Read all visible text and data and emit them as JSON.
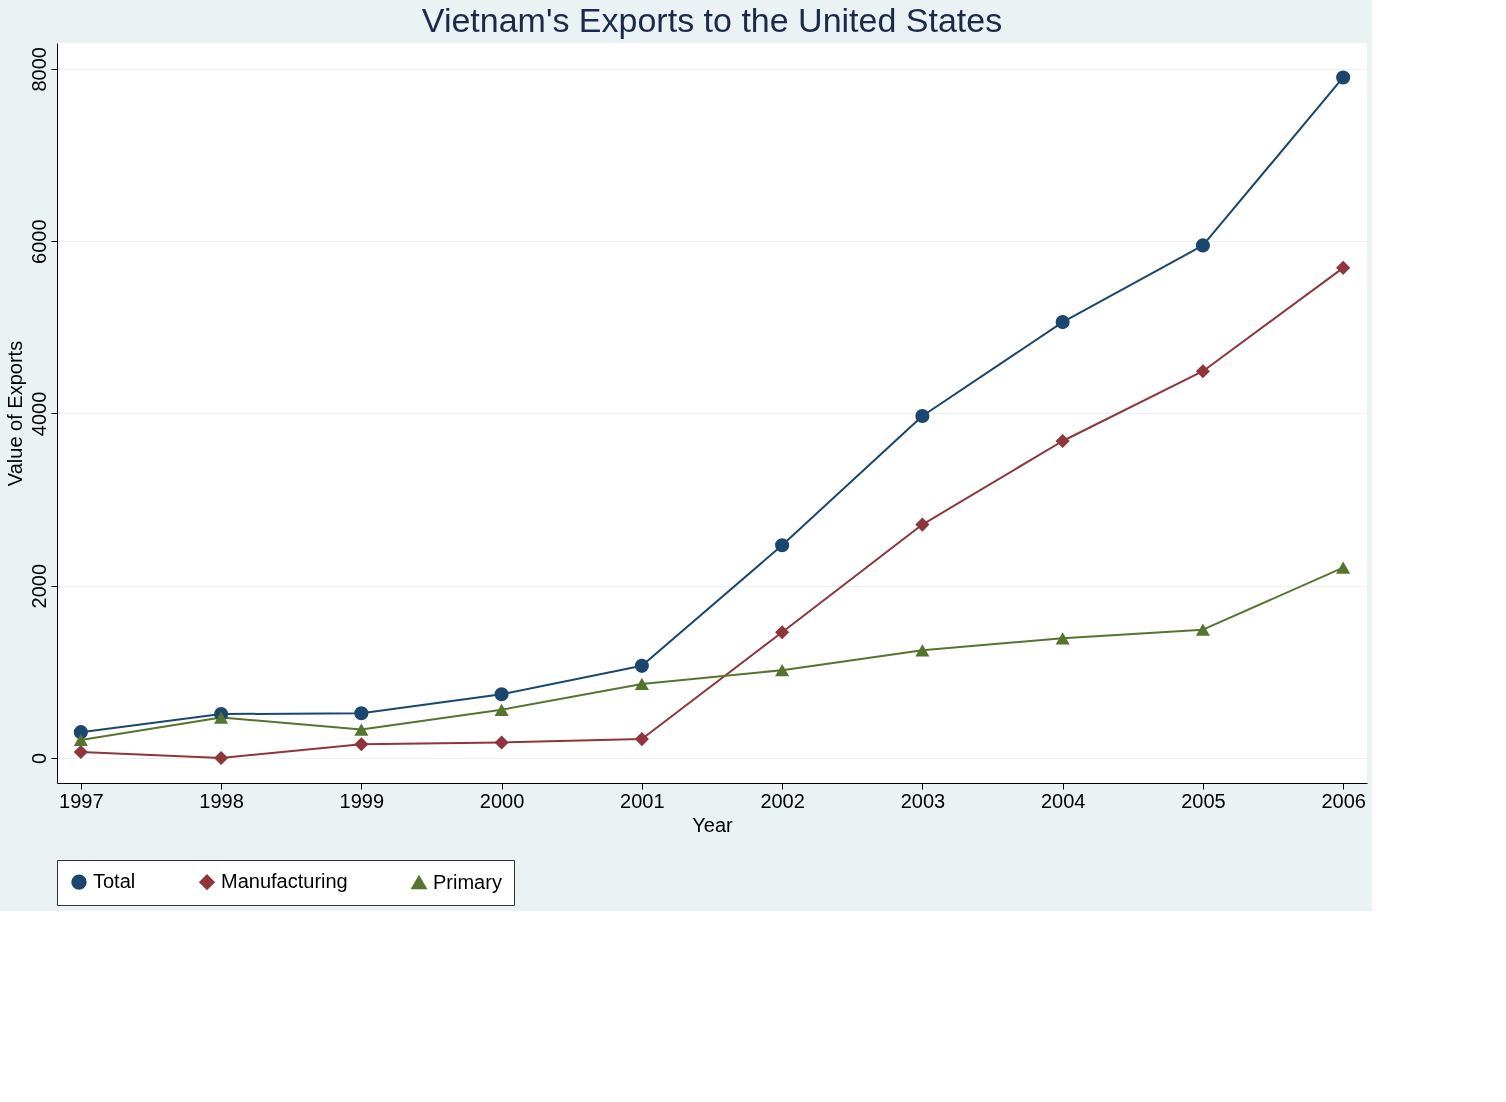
{
  "chart_data": {
    "type": "line",
    "title": "Vietnam's Exports to the United States",
    "xlabel": "Year",
    "ylabel": "Value of Exports",
    "x": [
      1997,
      1998,
      1999,
      2000,
      2001,
      2002,
      2003,
      2004,
      2005,
      2006
    ],
    "xlim": [
      1996.83,
      2006.17
    ],
    "xticks": [
      1997,
      1998,
      1999,
      2000,
      2001,
      2002,
      2003,
      2004,
      2005,
      2006
    ],
    "ylim": [
      -290,
      8300
    ],
    "yticks": [
      0,
      2000,
      4000,
      6000,
      8000
    ],
    "grid": "y",
    "legend": "bottom",
    "series": [
      {
        "name": "Total",
        "color": "#1a476f",
        "marker": "circle",
        "values": [
          300,
          510,
          520,
          740,
          1070,
          2470,
          3970,
          5060,
          5950,
          7900
        ]
      },
      {
        "name": "Manufacturing",
        "color": "#90353b",
        "marker": "diamond",
        "values": [
          70,
          0,
          160,
          180,
          220,
          1460,
          2710,
          3680,
          4490,
          5690
        ]
      },
      {
        "name": "Primary",
        "color": "#55752f",
        "marker": "triangle",
        "values": [
          210,
          470,
          330,
          560,
          860,
          1020,
          1250,
          1390,
          1490,
          2210
        ]
      }
    ]
  }
}
